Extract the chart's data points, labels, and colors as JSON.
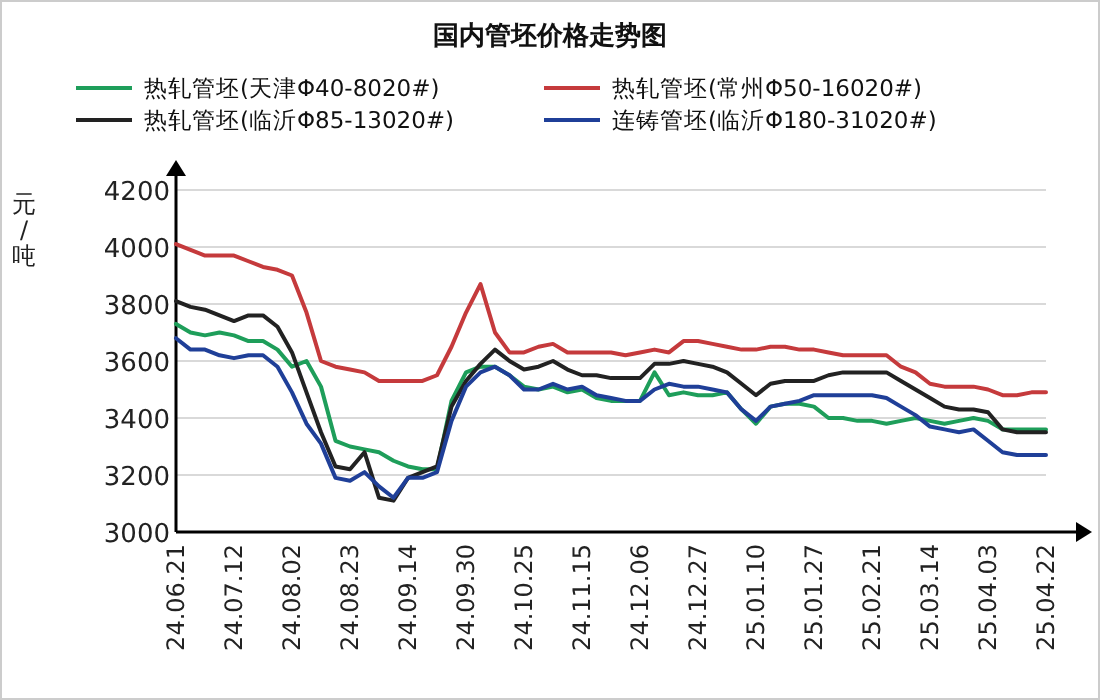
{
  "chart_data": {
    "type": "line",
    "title": "国内管坯价格走势图",
    "ylabel": "元/吨",
    "categories": [
      "24.06.21",
      null,
      null,
      null,
      "24.07.12",
      null,
      null,
      null,
      "24.08.02",
      null,
      null,
      null,
      "24.08.23",
      null,
      null,
      null,
      "24.09.14",
      null,
      null,
      null,
      "24.09.30",
      null,
      null,
      null,
      "24.10.25",
      null,
      null,
      null,
      "24.11.15",
      null,
      null,
      null,
      "24.12.06",
      null,
      null,
      null,
      "24.12.27",
      null,
      null,
      null,
      "25.01.10",
      null,
      null,
      null,
      "25.01.27",
      null,
      null,
      null,
      "25.02.21",
      null,
      null,
      null,
      "25.03.14",
      null,
      null,
      null,
      "25.04.03",
      null,
      null,
      null,
      "25.04.22"
    ],
    "series": [
      {
        "name": "热轧管坯(天津Φ40-8020#)",
        "color": "#1e9e5a",
        "values": [
          3730,
          3700,
          3690,
          3700,
          3690,
          3670,
          3670,
          3640,
          3580,
          3600,
          3510,
          3320,
          3300,
          3290,
          3280,
          3250,
          3230,
          3220,
          3220,
          3460,
          3560,
          3580,
          3580,
          3550,
          3510,
          3500,
          3510,
          3490,
          3500,
          3470,
          3460,
          3460,
          3460,
          3560,
          3480,
          3490,
          3480,
          3480,
          3490,
          3430,
          3380,
          3440,
          3450,
          3450,
          3440,
          3400,
          3400,
          3390,
          3390,
          3380,
          3390,
          3400,
          3390,
          3380,
          3390,
          3400,
          3390,
          3360,
          3360,
          3360,
          3360
        ]
      },
      {
        "name": "热轧管坯(常州Φ50-16020#)",
        "color": "#c53a3c",
        "values": [
          4010,
          3990,
          3970,
          3970,
          3970,
          3950,
          3930,
          3920,
          3900,
          3770,
          3600,
          3580,
          3570,
          3560,
          3530,
          3530,
          3530,
          3530,
          3550,
          3650,
          3770,
          3870,
          3700,
          3630,
          3630,
          3650,
          3660,
          3630,
          3630,
          3630,
          3630,
          3620,
          3630,
          3640,
          3630,
          3670,
          3670,
          3660,
          3650,
          3640,
          3640,
          3650,
          3650,
          3640,
          3640,
          3630,
          3620,
          3620,
          3620,
          3620,
          3580,
          3560,
          3520,
          3510,
          3510,
          3510,
          3500,
          3480,
          3480,
          3490,
          3490
        ]
      },
      {
        "name": "热轧管坯(临沂Φ85-13020#)",
        "color": "#222222",
        "values": [
          3810,
          3790,
          3780,
          3760,
          3740,
          3760,
          3760,
          3720,
          3630,
          3490,
          3350,
          3230,
          3220,
          3280,
          3120,
          3110,
          3190,
          3210,
          3230,
          3440,
          3530,
          3590,
          3640,
          3600,
          3570,
          3580,
          3600,
          3570,
          3550,
          3550,
          3540,
          3540,
          3540,
          3590,
          3590,
          3600,
          3590,
          3580,
          3560,
          3520,
          3480,
          3520,
          3530,
          3530,
          3530,
          3550,
          3560,
          3560,
          3560,
          3560,
          3530,
          3500,
          3470,
          3440,
          3430,
          3430,
          3420,
          3360,
          3350,
          3350,
          3350
        ]
      },
      {
        "name": "连铸管坯(临沂Φ180-31020#)",
        "color": "#1f3f98",
        "values": [
          3680,
          3640,
          3640,
          3620,
          3610,
          3620,
          3620,
          3580,
          3490,
          3380,
          3310,
          3190,
          3180,
          3210,
          3160,
          3120,
          3190,
          3190,
          3210,
          3390,
          3510,
          3560,
          3580,
          3550,
          3500,
          3500,
          3520,
          3500,
          3510,
          3480,
          3470,
          3460,
          3460,
          3500,
          3520,
          3510,
          3510,
          3500,
          3490,
          3430,
          3390,
          3440,
          3450,
          3460,
          3480,
          3480,
          3480,
          3480,
          3480,
          3470,
          3440,
          3410,
          3370,
          3360,
          3350,
          3360,
          3320,
          3280,
          3270,
          3270,
          3270
        ]
      }
    ],
    "ylim": [
      3000,
      4200
    ],
    "yticks": [
      3000,
      3200,
      3400,
      3600,
      3800,
      4000,
      4200
    ],
    "grid": "y",
    "legend": "top",
    "line_style": "solid"
  }
}
